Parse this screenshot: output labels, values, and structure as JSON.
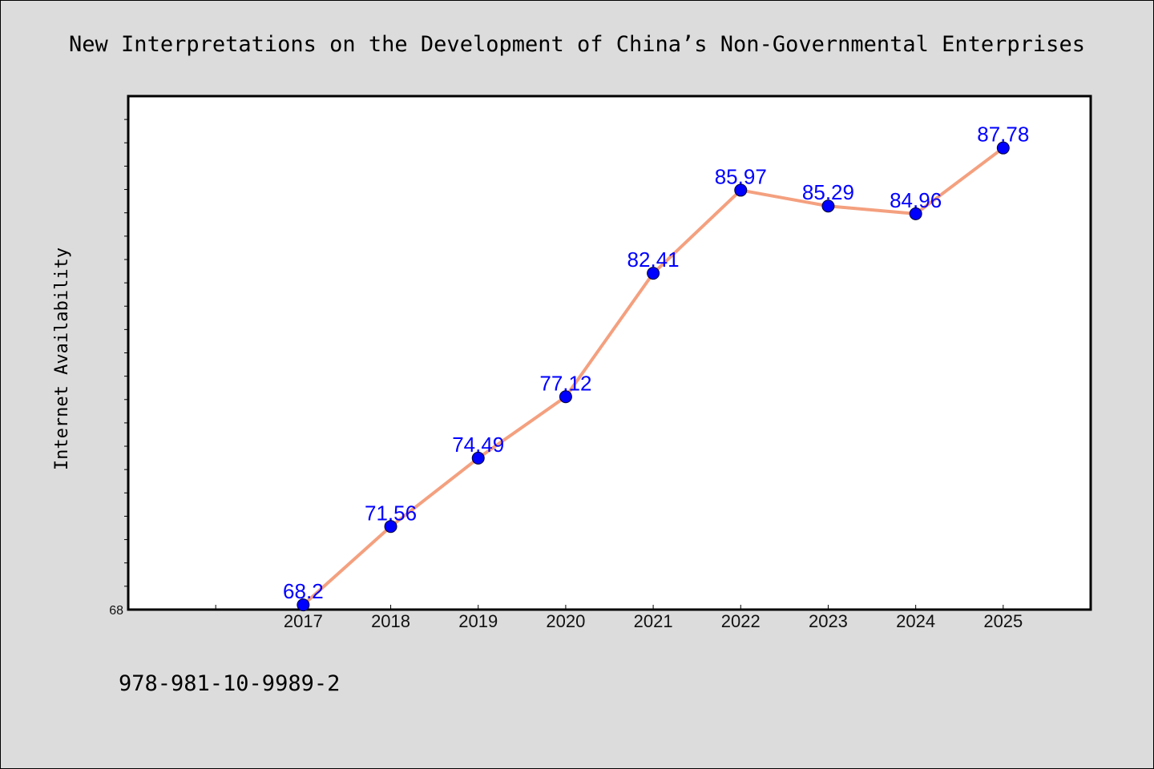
{
  "chart_data": {
    "type": "line",
    "title": "New Interpretations on the Development of China’s Non-Governmental Enterprises",
    "xlabel": "",
    "ylabel": "Internet Availability",
    "categories": [
      "2017",
      "2018",
      "2019",
      "2020",
      "2021",
      "2022",
      "2023",
      "2024",
      "2025"
    ],
    "series": [
      {
        "values": [
          68.2,
          71.56,
          74.49,
          77.12,
          82.41,
          85.97,
          85.29,
          84.96,
          87.78
        ]
      }
    ],
    "data_labels": [
      "68.2",
      "71.56",
      "74.49",
      "77.12",
      "82.41",
      "85.97",
      "85.29",
      "84.96",
      "87.78"
    ],
    "y_tick_labels": [
      "68"
    ],
    "ylim": [
      68,
      90
    ],
    "x_extra_slots": 1,
    "minor_tick_step": 1,
    "grid": false,
    "legend": "none",
    "line_color": "#f4a07f",
    "marker_color": "#0000ff"
  },
  "footer": {
    "isbn": "978-981-10-9989-2"
  }
}
